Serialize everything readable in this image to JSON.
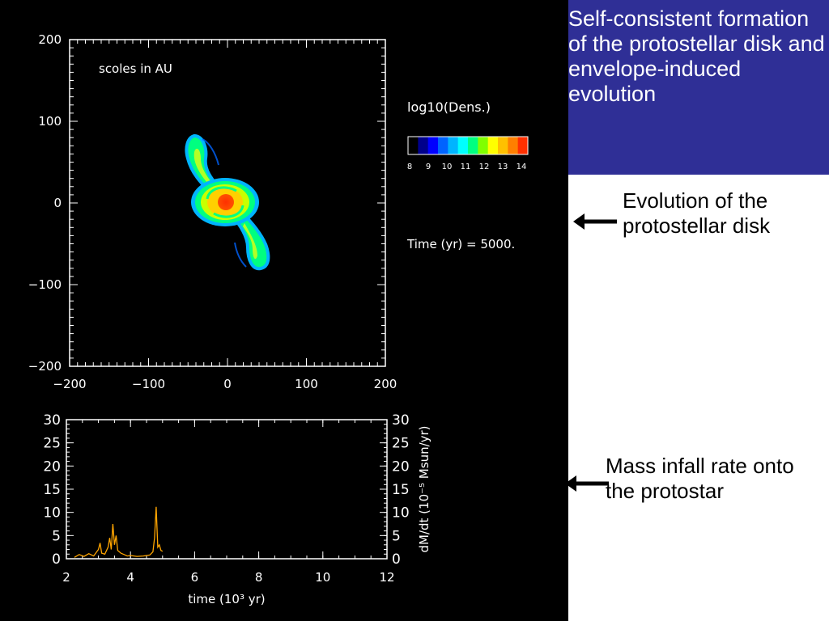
{
  "slide": {
    "title": "Self-consistent formation of the protostellar disk and envelope-induced evolution",
    "note_disk": "Evolution of the protostellar disk",
    "note_infall": "Mass infall rate onto the protostar",
    "arrow_color": "#000000",
    "title_bg": "#2f2f96",
    "panel_bg": "#000000"
  },
  "density_panel": {
    "annotation": "scoles in AU",
    "colorbar_title": "log10(Dens.)",
    "colorbar_ticks": [
      "8",
      "9",
      "10",
      "11",
      "12",
      "13",
      "14"
    ],
    "colorbar_colors": [
      "#000000",
      "#00008b",
      "#0000ff",
      "#0064ff",
      "#00b4ff",
      "#00ffff",
      "#00ff80",
      "#80ff00",
      "#ffff00",
      "#ffc000",
      "#ff7f00",
      "#ff3000"
    ],
    "time_label": "Time (yr) = 5000."
  },
  "chart_data": [
    {
      "type": "heatmap",
      "xlim": [
        -200,
        200
      ],
      "ylim": [
        -200,
        200
      ],
      "x_ticks": [
        "−200",
        "−100",
        "0",
        "100",
        "200"
      ],
      "y_ticks": [
        "200",
        "100",
        "0",
        "−100",
        "−200"
      ],
      "x_tick_values": [
        -200,
        -100,
        0,
        100,
        200
      ],
      "y_tick_values": [
        200,
        100,
        0,
        -100,
        -200
      ],
      "colorbar_range": [
        8,
        14
      ]
    },
    {
      "type": "line",
      "xlabel": "time (10³ yr)",
      "ylabel_right": "dM/dt (10⁻⁵ Msun/yr)",
      "xlim": [
        2,
        12
      ],
      "ylim": [
        0,
        30
      ],
      "x_ticks": [
        "2",
        "4",
        "6",
        "8",
        "10",
        "12"
      ],
      "y_ticks": [
        "0",
        "5",
        "10",
        "15",
        "20",
        "25",
        "30"
      ],
      "series": [
        {
          "color": "#ffa500",
          "x": [
            2.25,
            2.4,
            2.55,
            2.7,
            2.85,
            3.0,
            3.05,
            3.1,
            3.2,
            3.3,
            3.35,
            3.4,
            3.45,
            3.5,
            3.55,
            3.6,
            3.7,
            3.8,
            3.9,
            4.0,
            4.2,
            4.4,
            4.6,
            4.7,
            4.75,
            4.8,
            4.85,
            4.9,
            4.95,
            5.0
          ],
          "y": [
            0.3,
            0.9,
            0.5,
            1.1,
            0.6,
            2.0,
            3.4,
            1.2,
            1.0,
            2.5,
            4.5,
            2.0,
            7.5,
            3.0,
            5.0,
            1.8,
            1.2,
            0.9,
            0.6,
            0.7,
            0.5,
            0.6,
            0.8,
            1.5,
            4.5,
            11.2,
            2.5,
            3.0,
            1.8,
            1.6
          ]
        }
      ]
    }
  ]
}
